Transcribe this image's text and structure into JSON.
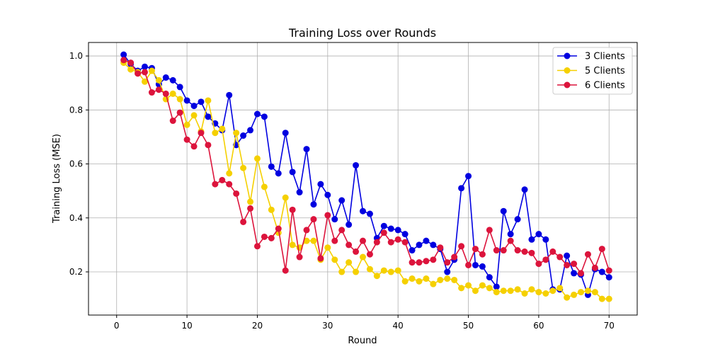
{
  "chart_data": {
    "type": "line",
    "title": "Training Loss over Rounds",
    "xlabel": "Round",
    "ylabel": "Training Loss (MSE)",
    "xlim": [
      -4,
      74
    ],
    "ylim": [
      0.04,
      1.05
    ],
    "xticks": [
      0,
      10,
      20,
      30,
      40,
      50,
      60,
      70
    ],
    "yticks": [
      0.2,
      0.4,
      0.6,
      0.8,
      1.0
    ],
    "xtick_labels": [
      "0",
      "10",
      "20",
      "30",
      "40",
      "50",
      "60",
      "70"
    ],
    "ytick_labels": [
      "0.2",
      "0.4",
      "0.6",
      "0.8",
      "1.0"
    ],
    "grid": true,
    "legend_position": "top-right",
    "x": [
      1,
      2,
      3,
      4,
      5,
      6,
      7,
      8,
      9,
      10,
      11,
      12,
      13,
      14,
      15,
      16,
      17,
      18,
      19,
      20,
      21,
      22,
      23,
      24,
      25,
      26,
      27,
      28,
      29,
      30,
      31,
      32,
      33,
      34,
      35,
      36,
      37,
      38,
      39,
      40,
      41,
      42,
      43,
      44,
      45,
      46,
      47,
      48,
      49,
      50,
      51,
      52,
      53,
      54,
      55,
      56,
      57,
      58,
      59,
      60,
      61,
      62,
      63,
      64,
      65,
      66,
      67,
      68,
      69,
      70
    ],
    "series": [
      {
        "name": "3 Clients",
        "color": "#0000e0",
        "values": [
          1.005,
          0.97,
          0.945,
          0.96,
          0.955,
          0.895,
          0.92,
          0.91,
          0.885,
          0.835,
          0.815,
          0.83,
          0.775,
          0.75,
          0.725,
          0.855,
          0.67,
          0.705,
          0.725,
          0.785,
          0.775,
          0.59,
          0.565,
          0.715,
          0.57,
          0.495,
          0.655,
          0.45,
          0.525,
          0.485,
          0.395,
          0.465,
          0.375,
          0.595,
          0.425,
          0.415,
          0.325,
          0.37,
          0.36,
          0.355,
          0.34,
          0.28,
          0.3,
          0.315,
          0.3,
          0.285,
          0.2,
          0.245,
          0.51,
          0.555,
          0.225,
          0.22,
          0.18,
          0.145,
          0.425,
          0.34,
          0.395,
          0.505,
          0.32,
          0.34,
          0.32,
          0.135,
          0.135,
          0.26,
          0.195,
          0.19,
          0.115,
          0.21,
          0.2,
          0.18
        ]
      },
      {
        "name": "5 Clients",
        "color": "#f5d000",
        "values": [
          0.975,
          0.95,
          0.94,
          0.905,
          0.945,
          0.91,
          0.84,
          0.86,
          0.84,
          0.745,
          0.78,
          0.72,
          0.835,
          0.715,
          0.73,
          0.565,
          0.715,
          0.585,
          0.46,
          0.62,
          0.515,
          0.43,
          0.345,
          0.475,
          0.3,
          0.29,
          0.315,
          0.315,
          0.245,
          0.29,
          0.245,
          0.2,
          0.235,
          0.2,
          0.255,
          0.21,
          0.185,
          0.205,
          0.2,
          0.205,
          0.165,
          0.175,
          0.165,
          0.175,
          0.155,
          0.17,
          0.175,
          0.17,
          0.14,
          0.15,
          0.13,
          0.15,
          0.14,
          0.125,
          0.13,
          0.13,
          0.135,
          0.12,
          0.135,
          0.125,
          0.12,
          0.13,
          0.14,
          0.105,
          0.115,
          0.125,
          0.13,
          0.125,
          0.1,
          0.1
        ]
      },
      {
        "name": "6 Clients",
        "color": "#dc143c",
        "values": [
          0.985,
          0.975,
          0.935,
          0.94,
          0.865,
          0.875,
          0.86,
          0.76,
          0.79,
          0.69,
          0.665,
          0.715,
          0.67,
          0.525,
          0.54,
          0.525,
          0.49,
          0.385,
          0.435,
          0.295,
          0.33,
          0.325,
          0.36,
          0.205,
          0.43,
          0.255,
          0.355,
          0.395,
          0.25,
          0.41,
          0.315,
          0.355,
          0.3,
          0.275,
          0.315,
          0.265,
          0.31,
          0.345,
          0.31,
          0.32,
          0.31,
          0.235,
          0.235,
          0.24,
          0.245,
          0.29,
          0.235,
          0.255,
          0.295,
          0.225,
          0.285,
          0.265,
          0.355,
          0.28,
          0.28,
          0.315,
          0.28,
          0.275,
          0.27,
          0.23,
          0.245,
          0.275,
          0.255,
          0.225,
          0.23,
          0.195,
          0.265,
          0.215,
          0.285,
          0.205
        ]
      }
    ]
  }
}
